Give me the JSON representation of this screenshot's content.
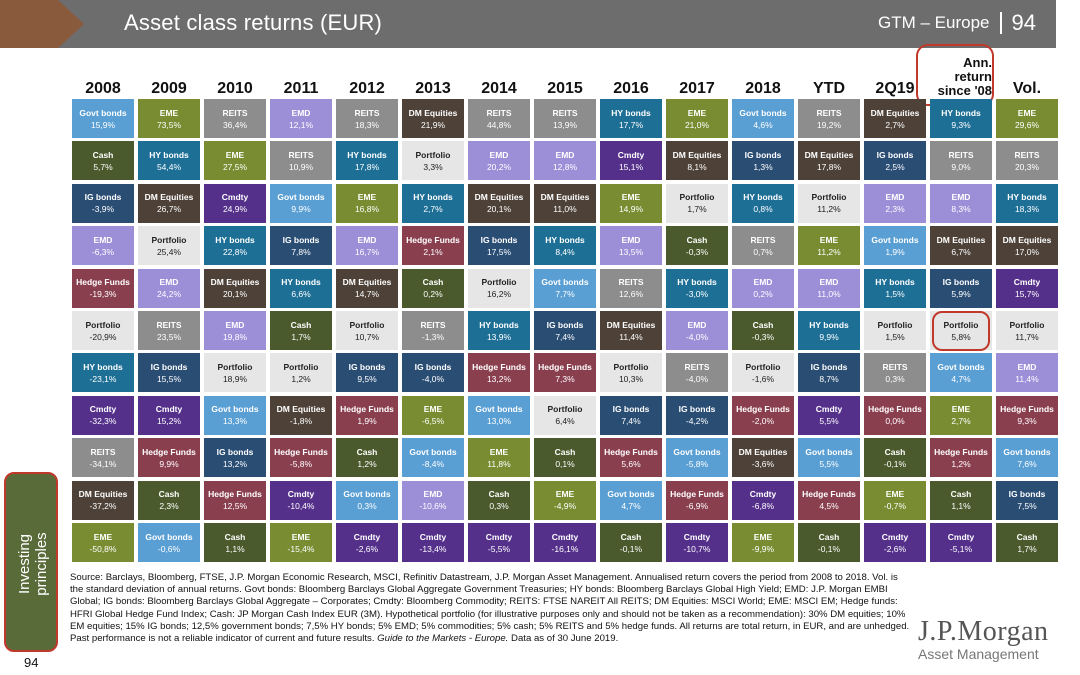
{
  "header": {
    "title": "Asset class returns (EUR)",
    "region": "GTM – Europe",
    "page": "94"
  },
  "side": {
    "line1": "Investing",
    "line2": "principles",
    "page": "94"
  },
  "colors": {
    "Govt bonds": "#5a9fd4",
    "EME": "#7a8c32",
    "REITS": "#8d8d8d",
    "EMD": "#9c8fd8",
    "DM Equities": "#4d4138",
    "HY bonds": "#1e6f96",
    "Cash": "#4a5a2c",
    "Portfolio": "#e6e6e6",
    "IG bonds": "#2a4d74",
    "Cmdty": "#55308a",
    "Hedge Funds": "#8a3f4f"
  },
  "chart_data": {
    "type": "table",
    "title": "Asset class returns (EUR)",
    "columns": [
      "2008",
      "2009",
      "2010",
      "2011",
      "2012",
      "2013",
      "2014",
      "2015",
      "2016",
      "2017",
      "2018",
      "YTD",
      "2Q19",
      "Ann. return since '08",
      "Vol."
    ],
    "cells": [
      [
        {
          "a": "Govt bonds",
          "v": "15,9%"
        },
        {
          "a": "Cash",
          "v": "5,7%"
        },
        {
          "a": "IG bonds",
          "v": "-3,9%"
        },
        {
          "a": "EMD",
          "v": "-6,3%"
        },
        {
          "a": "Hedge Funds",
          "v": "-19,3%"
        },
        {
          "a": "Portfolio",
          "v": "-20,9%"
        },
        {
          "a": "HY bonds",
          "v": "-23,1%"
        },
        {
          "a": "Cmdty",
          "v": "-32,3%"
        },
        {
          "a": "REITS",
          "v": "-34,1%"
        },
        {
          "a": "DM Equities",
          "v": "-37,2%"
        },
        {
          "a": "EME",
          "v": "-50,8%"
        }
      ],
      [
        {
          "a": "EME",
          "v": "73,5%"
        },
        {
          "a": "HY bonds",
          "v": "54,4%"
        },
        {
          "a": "DM Equities",
          "v": "26,7%"
        },
        {
          "a": "Portfolio",
          "v": "25,4%"
        },
        {
          "a": "EMD",
          "v": "24,2%"
        },
        {
          "a": "REITS",
          "v": "23,5%"
        },
        {
          "a": "IG bonds",
          "v": "15,5%"
        },
        {
          "a": "Cmdty",
          "v": "15,2%"
        },
        {
          "a": "Hedge Funds",
          "v": "9,9%"
        },
        {
          "a": "Cash",
          "v": "2,3%"
        },
        {
          "a": "Govt bonds",
          "v": "-0,6%"
        }
      ],
      [
        {
          "a": "REITS",
          "v": "36,4%"
        },
        {
          "a": "EME",
          "v": "27,5%"
        },
        {
          "a": "Cmdty",
          "v": "24,9%"
        },
        {
          "a": "HY bonds",
          "v": "22,8%"
        },
        {
          "a": "DM Equities",
          "v": "20,1%"
        },
        {
          "a": "EMD",
          "v": "19,8%"
        },
        {
          "a": "Portfolio",
          "v": "18,9%"
        },
        {
          "a": "Govt bonds",
          "v": "13,3%"
        },
        {
          "a": "IG bonds",
          "v": "13,2%"
        },
        {
          "a": "Hedge Funds",
          "v": "12,5%"
        },
        {
          "a": "Cash",
          "v": "1,1%"
        }
      ],
      [
        {
          "a": "EMD",
          "v": "12,1%"
        },
        {
          "a": "REITS",
          "v": "10,9%"
        },
        {
          "a": "Govt bonds",
          "v": "9,9%"
        },
        {
          "a": "IG bonds",
          "v": "7,8%"
        },
        {
          "a": "HY bonds",
          "v": "6,6%"
        },
        {
          "a": "Cash",
          "v": "1,7%"
        },
        {
          "a": "Portfolio",
          "v": "1,2%"
        },
        {
          "a": "DM Equities",
          "v": "-1,8%"
        },
        {
          "a": "Hedge Funds",
          "v": "-5,8%"
        },
        {
          "a": "Cmdty",
          "v": "-10,4%"
        },
        {
          "a": "EME",
          "v": "-15,4%"
        }
      ],
      [
        {
          "a": "REITS",
          "v": "18,3%"
        },
        {
          "a": "HY bonds",
          "v": "17,8%"
        },
        {
          "a": "EME",
          "v": "16,8%"
        },
        {
          "a": "EMD",
          "v": "16,7%"
        },
        {
          "a": "DM Equities",
          "v": "14,7%"
        },
        {
          "a": "Portfolio",
          "v": "10,7%"
        },
        {
          "a": "IG bonds",
          "v": "9,5%"
        },
        {
          "a": "Hedge Funds",
          "v": "1,9%"
        },
        {
          "a": "Cash",
          "v": "1,2%"
        },
        {
          "a": "Govt bonds",
          "v": "0,3%"
        },
        {
          "a": "Cmdty",
          "v": "-2,6%"
        }
      ],
      [
        {
          "a": "DM Equities",
          "v": "21,9%"
        },
        {
          "a": "Portfolio",
          "v": "3,3%"
        },
        {
          "a": "HY bonds",
          "v": "2,7%"
        },
        {
          "a": "Hedge Funds",
          "v": "2,1%"
        },
        {
          "a": "Cash",
          "v": "0,2%"
        },
        {
          "a": "REITS",
          "v": "-1,3%"
        },
        {
          "a": "IG bonds",
          "v": "-4,0%"
        },
        {
          "a": "EME",
          "v": "-6,5%"
        },
        {
          "a": "Govt bonds",
          "v": "-8,4%"
        },
        {
          "a": "EMD",
          "v": "-10,6%"
        },
        {
          "a": "Cmdty",
          "v": "-13,4%"
        }
      ],
      [
        {
          "a": "REITS",
          "v": "44,8%"
        },
        {
          "a": "EMD",
          "v": "20,2%"
        },
        {
          "a": "DM Equities",
          "v": "20,1%"
        },
        {
          "a": "IG bonds",
          "v": "17,5%"
        },
        {
          "a": "Portfolio",
          "v": "16,2%"
        },
        {
          "a": "HY bonds",
          "v": "13,9%"
        },
        {
          "a": "Hedge Funds",
          "v": "13,2%"
        },
        {
          "a": "Govt bonds",
          "v": "13,0%"
        },
        {
          "a": "EME",
          "v": "11,8%"
        },
        {
          "a": "Cash",
          "v": "0,3%"
        },
        {
          "a": "Cmdty",
          "v": "-5,5%"
        }
      ],
      [
        {
          "a": "REITS",
          "v": "13,9%"
        },
        {
          "a": "EMD",
          "v": "12,8%"
        },
        {
          "a": "DM Equities",
          "v": "11,0%"
        },
        {
          "a": "HY bonds",
          "v": "8,4%"
        },
        {
          "a": "Govt bonds",
          "v": "7,7%"
        },
        {
          "a": "IG bonds",
          "v": "7,4%"
        },
        {
          "a": "Hedge Funds",
          "v": "7,3%"
        },
        {
          "a": "Portfolio",
          "v": "6,4%"
        },
        {
          "a": "Cash",
          "v": "0,1%"
        },
        {
          "a": "EME",
          "v": "-4,9%"
        },
        {
          "a": "Cmdty",
          "v": "-16,1%"
        }
      ],
      [
        {
          "a": "HY bonds",
          "v": "17,7%"
        },
        {
          "a": "Cmdty",
          "v": "15,1%"
        },
        {
          "a": "EME",
          "v": "14,9%"
        },
        {
          "a": "EMD",
          "v": "13,5%"
        },
        {
          "a": "REITS",
          "v": "12,6%"
        },
        {
          "a": "DM Equities",
          "v": "11,4%"
        },
        {
          "a": "Portfolio",
          "v": "10,3%"
        },
        {
          "a": "IG bonds",
          "v": "7,4%"
        },
        {
          "a": "Hedge Funds",
          "v": "5,6%"
        },
        {
          "a": "Govt bonds",
          "v": "4,7%"
        },
        {
          "a": "Cash",
          "v": "-0,1%"
        }
      ],
      [
        {
          "a": "EME",
          "v": "21,0%"
        },
        {
          "a": "DM Equities",
          "v": "8,1%"
        },
        {
          "a": "Portfolio",
          "v": "1,7%"
        },
        {
          "a": "Cash",
          "v": "-0,3%"
        },
        {
          "a": "HY bonds",
          "v": "-3,0%"
        },
        {
          "a": "EMD",
          "v": "-4,0%"
        },
        {
          "a": "REITS",
          "v": "-4,0%"
        },
        {
          "a": "IG bonds",
          "v": "-4,2%"
        },
        {
          "a": "Govt bonds",
          "v": "-5,8%"
        },
        {
          "a": "Hedge Funds",
          "v": "-6,9%"
        },
        {
          "a": "Cmdty",
          "v": "-10,7%"
        }
      ],
      [
        {
          "a": "Govt bonds",
          "v": "4,6%"
        },
        {
          "a": "IG bonds",
          "v": "1,3%"
        },
        {
          "a": "HY bonds",
          "v": "0,8%"
        },
        {
          "a": "REITS",
          "v": "0,7%"
        },
        {
          "a": "EMD",
          "v": "0,2%"
        },
        {
          "a": "Cash",
          "v": "-0,3%"
        },
        {
          "a": "Portfolio",
          "v": "-1,6%"
        },
        {
          "a": "Hedge Funds",
          "v": "-2,0%"
        },
        {
          "a": "DM Equities",
          "v": "-3,6%"
        },
        {
          "a": "Cmdty",
          "v": "-6,8%"
        },
        {
          "a": "EME",
          "v": "-9,9%"
        }
      ],
      [
        {
          "a": "REITS",
          "v": "19,2%"
        },
        {
          "a": "DM Equities",
          "v": "17,8%"
        },
        {
          "a": "Portfolio",
          "v": "11,2%"
        },
        {
          "a": "EME",
          "v": "11,2%"
        },
        {
          "a": "EMD",
          "v": "11,0%"
        },
        {
          "a": "HY bonds",
          "v": "9,9%"
        },
        {
          "a": "IG bonds",
          "v": "8,7%"
        },
        {
          "a": "Cmdty",
          "v": "5,5%"
        },
        {
          "a": "Govt bonds",
          "v": "5,5%"
        },
        {
          "a": "Hedge Funds",
          "v": "4,5%"
        },
        {
          "a": "Cash",
          "v": "-0,1%"
        }
      ],
      [
        {
          "a": "DM Equities",
          "v": "2,7%"
        },
        {
          "a": "IG bonds",
          "v": "2,5%"
        },
        {
          "a": "EMD",
          "v": "2,3%"
        },
        {
          "a": "Govt bonds",
          "v": "1,9%"
        },
        {
          "a": "HY bonds",
          "v": "1,5%"
        },
        {
          "a": "Portfolio",
          "v": "1,5%"
        },
        {
          "a": "REITS",
          "v": "0,3%"
        },
        {
          "a": "Hedge Funds",
          "v": "0,0%"
        },
        {
          "a": "Cash",
          "v": "-0,1%"
        },
        {
          "a": "EME",
          "v": "-0,7%"
        },
        {
          "a": "Cmdty",
          "v": "-2,6%"
        }
      ],
      [
        {
          "a": "HY bonds",
          "v": "9,3%"
        },
        {
          "a": "REITS",
          "v": "9,0%"
        },
        {
          "a": "EMD",
          "v": "8,3%"
        },
        {
          "a": "DM Equities",
          "v": "6,7%"
        },
        {
          "a": "IG bonds",
          "v": "5,9%"
        },
        {
          "a": "Portfolio",
          "v": "5,8%"
        },
        {
          "a": "Govt bonds",
          "v": "4,7%"
        },
        {
          "a": "EME",
          "v": "2,7%"
        },
        {
          "a": "Hedge Funds",
          "v": "1,2%"
        },
        {
          "a": "Cash",
          "v": "1,1%"
        },
        {
          "a": "Cmdty",
          "v": "-5,1%"
        }
      ],
      [
        {
          "a": "EME",
          "v": "29,6%"
        },
        {
          "a": "REITS",
          "v": "20,3%"
        },
        {
          "a": "HY bonds",
          "v": "18,3%"
        },
        {
          "a": "DM Equities",
          "v": "17,0%"
        },
        {
          "a": "Cmdty",
          "v": "15,7%"
        },
        {
          "a": "Portfolio",
          "v": "11,7%"
        },
        {
          "a": "EMD",
          "v": "11,4%"
        },
        {
          "a": "Hedge Funds",
          "v": "9,3%"
        },
        {
          "a": "Govt bonds",
          "v": "7,6%"
        },
        {
          "a": "IG bonds",
          "v": "7,5%"
        },
        {
          "a": "Cash",
          "v": "1,7%"
        }
      ]
    ],
    "highlighted": {
      "column": "Ann. return since '08",
      "asset": "Portfolio",
      "value": "5,8%"
    }
  },
  "footnote": {
    "text": "Source: Barclays, Bloomberg, FTSE, J.P. Morgan Economic Research, MSCI, Refinitiv Datastream, J.P. Morgan Asset Management. Annualised return covers the period from 2008 to 2018. Vol. is the standard deviation of annual returns. Govt bonds: Bloomberg Barclays Global Aggregate Government Treasuries; HY bonds: Bloomberg Barclays Global High Yield; EMD: J.P. Morgan EMBI Global; IG bonds: Bloomberg Barclays Global Aggregate – Corporates; Cmdty: Bloomberg Commodity; REITS: FTSE NAREIT All REITS; DM Equities: MSCI World; EME: MSCI EM; Hedge funds: HFRI Global Hedge Fund Index; Cash: JP Morgan Cash Index EUR (3M). Hypothetical portfolio (for illustrative purposes only and should not be taken as a recommendation): 30% DM equities; 10% EM equities; 15% IG bonds; 12,5% government bonds; 7,5% HY bonds; 5% EMD; 5% commodities; 5% cash; 5% REITS and 5% hedge funds. All returns are total return, in EUR, and are unhedged. Past performance is not a reliable indicator of current and future results.",
    "guide": "Guide to the Markets - Europe.",
    "asof": "Data as of 30 June 2019."
  },
  "logo": {
    "line1": "J.P.Morgan",
    "line2": "Asset Management"
  }
}
